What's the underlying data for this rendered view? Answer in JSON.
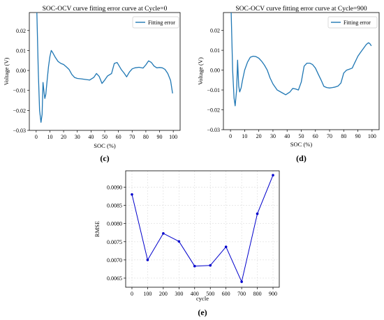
{
  "chart_data": [
    {
      "type": "line",
      "title": "SOC-OCV curve fitting error curve at Cycle=0",
      "xlabel": "SOC (%)",
      "ylabel": "Voltage (V)",
      "xlim": [
        -5,
        105
      ],
      "ylim": [
        -0.03,
        0.029
      ],
      "xticks": [
        "0",
        "10",
        "20",
        "30",
        "40",
        "50",
        "60",
        "70",
        "80",
        "90",
        "100"
      ],
      "yticks": [
        "−0.03",
        "−0.02",
        "−0.01",
        "0.00",
        "0.01",
        "0.02"
      ],
      "legend": "upper right",
      "grid": false,
      "color": "#1f77b4",
      "panel_label": "(c)",
      "series": [
        {
          "name": "Fitting error",
          "x": [
            0.5,
            1.5,
            2.5,
            3.5,
            4.3,
            5.0,
            5.6,
            6.3,
            7.0,
            8.0,
            9.0,
            10.0,
            11.0,
            12.0,
            14.0,
            16.0,
            18.0,
            20.0,
            22.0,
            24.0,
            26.0,
            28.0,
            30.0,
            33.0,
            36.0,
            39.0,
            42.0,
            44.0,
            46.0,
            48.0,
            50.0,
            52.0,
            55.0,
            57.0,
            59.0,
            62.0,
            64.0,
            66.0,
            68.0,
            70.0,
            72.0,
            75.0,
            78.0,
            80.0,
            82.0,
            84.0,
            86.0,
            88.0,
            90.0,
            92.0,
            94.0,
            96.0,
            98.0,
            99.5
          ],
          "y": [
            0.029,
            0.0,
            -0.02,
            -0.026,
            -0.022,
            -0.006,
            -0.01,
            -0.014,
            -0.012,
            -0.005,
            0.002,
            0.007,
            0.01,
            0.009,
            0.0065,
            0.0045,
            0.0035,
            0.003,
            0.0018,
            0.0005,
            -0.002,
            -0.0035,
            -0.004,
            -0.0042,
            -0.0045,
            -0.0048,
            -0.0035,
            -0.0015,
            -0.003,
            -0.0065,
            -0.0048,
            -0.0028,
            -0.0015,
            0.0035,
            0.004,
            0.0005,
            -0.0012,
            -0.0032,
            -0.0008,
            0.0008,
            0.0013,
            0.0016,
            0.0012,
            0.0028,
            0.0048,
            0.004,
            0.0022,
            0.0013,
            0.0015,
            0.0013,
            0.0005,
            -0.0015,
            -0.005,
            -0.0115
          ]
        }
      ]
    },
    {
      "type": "line",
      "title": "SOC-OCV curve fitting error curve at Cycle=900",
      "xlabel": "SOC (%)",
      "ylabel": "Voltage (V)",
      "xlim": [
        -5,
        105
      ],
      "ylim": [
        -0.03,
        0.029
      ],
      "xticks": [
        "0",
        "10",
        "20",
        "30",
        "40",
        "50",
        "60",
        "70",
        "80",
        "90",
        "100"
      ],
      "yticks": [
        "−0.03",
        "−0.02",
        "−0.01",
        "0.00",
        "0.01",
        "0.02"
      ],
      "legend": "upper right",
      "grid": false,
      "color": "#1f77b4",
      "panel_label": "(d)",
      "series": [
        {
          "name": "Fitting error",
          "x": [
            0.5,
            1.5,
            2.5,
            3.3,
            4.3,
            5.0,
            5.8,
            6.5,
            7.5,
            8.5,
            10.0,
            12.0,
            14.0,
            16.0,
            18.0,
            20.0,
            22.0,
            24.0,
            26.0,
            28.0,
            30.0,
            33.0,
            36.0,
            39.0,
            42.0,
            44.0,
            46.0,
            48.0,
            50.0,
            52.0,
            54.0,
            56.0,
            58.0,
            60.0,
            62.0,
            64.0,
            66.0,
            68.0,
            70.0,
            72.0,
            74.0,
            76.0,
            78.0,
            80.0,
            82.0,
            84.0,
            86.0,
            88.0,
            90.0,
            92.0,
            94.0,
            96.0,
            97.5,
            98.5,
            99.5
          ],
          "y": [
            0.029,
            0.0,
            -0.014,
            -0.018,
            -0.01,
            0.005,
            -0.008,
            -0.011,
            -0.009,
            -0.005,
            0.0,
            0.004,
            0.0065,
            0.007,
            0.0068,
            0.006,
            0.0045,
            0.0025,
            0.0,
            -0.004,
            -0.007,
            -0.01,
            -0.0112,
            -0.0124,
            -0.011,
            -0.0092,
            -0.0095,
            -0.01,
            -0.006,
            0.002,
            0.0035,
            0.0035,
            0.0028,
            0.001,
            -0.002,
            -0.005,
            -0.0082,
            -0.0088,
            -0.009,
            -0.0088,
            -0.0085,
            -0.008,
            -0.0065,
            -0.0015,
            0.0,
            0.0005,
            0.001,
            0.004,
            0.007,
            0.009,
            0.011,
            0.013,
            0.0138,
            0.0133,
            0.0122
          ]
        }
      ]
    },
    {
      "type": "line",
      "title": "",
      "xlabel": "cycle",
      "ylabel": "RMSE",
      "xlim": [
        -40,
        940
      ],
      "ylim": [
        0.00625,
        0.00945
      ],
      "xticks": [
        "0",
        "100",
        "200",
        "300",
        "400",
        "500",
        "600",
        "700",
        "800",
        "900"
      ],
      "yticks": [
        "0.0065",
        "0.0070",
        "0.0075",
        "0.0080",
        "0.0085",
        "0.0090"
      ],
      "grid": true,
      "markers": true,
      "color": "#0000cc",
      "panel_label": "(e)",
      "series": [
        {
          "x": [
            0,
            100,
            200,
            300,
            400,
            500,
            600,
            700,
            800,
            900
          ],
          "y": [
            0.0088,
            0.007,
            0.00773,
            0.00751,
            0.00683,
            0.00685,
            0.00736,
            0.0064,
            0.00827,
            0.00933
          ]
        }
      ]
    }
  ]
}
